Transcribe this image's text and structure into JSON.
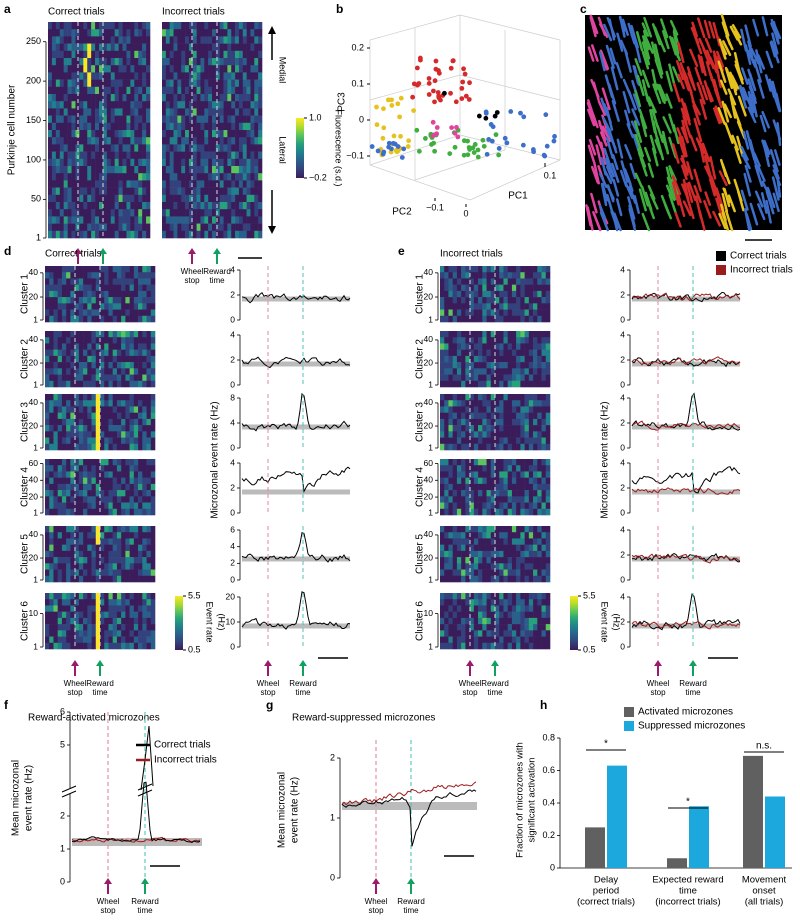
{
  "a": {
    "label": "a",
    "titles": [
      "Correct trials",
      "Incorrect trials"
    ],
    "ylabel": "Purkinje cell number",
    "ylim": [
      1,
      275
    ],
    "yticks": [
      1,
      50,
      100,
      150,
      200,
      250
    ],
    "medial": "Medial",
    "lateral": "Lateral",
    "colorbar": {
      "label": "Fluorescence (s.d.)",
      "ticks": [
        {
          "value": 1.0,
          "label": "1.0"
        },
        {
          "value": -0.2,
          "label": "−0.2"
        }
      ]
    }
  },
  "b": {
    "label": "b",
    "pc1": "PC1",
    "pc2": "PC2",
    "pc3": "PC3",
    "pc3_ticks": [
      0.2,
      0.1,
      0,
      {
        "value": -0.1,
        "label": "−0.1"
      }
    ],
    "pc2_ticks": [
      {
        "value": -0.1,
        "label": "−0.1"
      },
      0
    ],
    "pc1_ticks": [
      0.1
    ]
  },
  "c": {
    "label": "c"
  },
  "markers": {
    "wheel_stop": [
      "Wheel",
      "stop"
    ],
    "reward_time": [
      "Reward",
      "time"
    ]
  },
  "d": {
    "label": "d",
    "title": "Correct trials",
    "trace_ylabel": "Microzonal event rate (Hz)",
    "colorbar": {
      "label": [
        "Event rate",
        "(Hz)"
      ],
      "ticks": [
        5.5,
        0.5
      ]
    },
    "clusters": [
      {
        "name": "Cluster 1",
        "color": "#3d6ec9",
        "ylim": [
          1,
          44
        ],
        "yticks": [
          1,
          20,
          40
        ],
        "trace_ylim": [
          0,
          4
        ],
        "trace_yticks": [
          0,
          2,
          4
        ]
      },
      {
        "name": "Cluster 2",
        "color": "#e6c21e",
        "ylim": [
          1,
          46
        ],
        "yticks": [
          1,
          20,
          40
        ],
        "trace_ylim": [
          0,
          4
        ],
        "trace_yticks": [
          0,
          2,
          4
        ]
      },
      {
        "name": "Cluster 3",
        "color": "#d42a2a",
        "ylim": [
          1,
          46
        ],
        "yticks": [
          1,
          20,
          40
        ],
        "trace_ylim": [
          0,
          8
        ],
        "trace_yticks": [
          0,
          4,
          8
        ]
      },
      {
        "name": "Cluster 4",
        "color": "#3fae3f",
        "ylim": [
          1,
          63
        ],
        "yticks": [
          1,
          20,
          40,
          60
        ],
        "trace_ylim": [
          0,
          4
        ],
        "trace_yticks": [
          0,
          2,
          4
        ]
      },
      {
        "name": "Cluster 5",
        "color": "#3d6ec9",
        "ylim": [
          1,
          46
        ],
        "yticks": [
          1,
          20,
          40
        ],
        "trace_ylim": [
          0,
          6
        ],
        "trace_yticks": [
          0,
          2,
          4,
          6
        ]
      },
      {
        "name": "Cluster 6",
        "color": "#e0449e",
        "ylim": [
          1,
          15
        ],
        "yticks": [
          1,
          10
        ],
        "trace_ylim": [
          0,
          20
        ],
        "trace_yticks": [
          0,
          10,
          20
        ]
      }
    ]
  },
  "e": {
    "label": "e",
    "title": "Incorrect trials",
    "trace_ylabel": "Microzonal event rate (Hz)",
    "legend": [
      {
        "name": "Correct trials",
        "color": "#000000"
      },
      {
        "name": "Incorrect trials",
        "color": "#9b1c1c"
      }
    ],
    "colorbar": {
      "label": [
        "Event rate",
        "(Hz)"
      ],
      "ticks": [
        5.5,
        0.5
      ]
    },
    "clusters": [
      {
        "name": "Cluster 1",
        "color": "#3d6ec9",
        "ylim": [
          1,
          44
        ],
        "yticks": [
          1,
          20,
          40
        ],
        "trace_ylim": [
          0,
          4
        ],
        "trace_yticks": [
          0,
          2,
          4
        ]
      },
      {
        "name": "Cluster 2",
        "color": "#e6c21e",
        "ylim": [
          1,
          46
        ],
        "yticks": [
          1,
          20,
          40
        ],
        "trace_ylim": [
          0,
          4
        ],
        "trace_yticks": [
          0,
          2,
          4
        ]
      },
      {
        "name": "Cluster 3",
        "color": "#d42a2a",
        "ylim": [
          1,
          46
        ],
        "yticks": [
          1,
          20,
          40
        ],
        "trace_ylim": [
          0,
          4
        ],
        "trace_yticks": [
          0,
          2,
          4
        ]
      },
      {
        "name": "Cluster 4",
        "color": "#3fae3f",
        "ylim": [
          1,
          63
        ],
        "yticks": [
          1,
          20,
          40,
          60
        ],
        "trace_ylim": [
          0,
          4
        ],
        "trace_yticks": [
          0,
          2,
          4
        ]
      },
      {
        "name": "Cluster 5",
        "color": "#3d6ec9",
        "ylim": [
          1,
          46
        ],
        "yticks": [
          1,
          20,
          40
        ],
        "trace_ylim": [
          0,
          4
        ],
        "trace_yticks": [
          0,
          2,
          4
        ]
      },
      {
        "name": "Cluster 6",
        "color": "#e0449e",
        "ylim": [
          1,
          15
        ],
        "yticks": [
          1,
          10
        ],
        "trace_ylim": [
          0,
          4
        ],
        "trace_yticks": [
          0,
          2,
          4
        ]
      }
    ]
  },
  "f": {
    "label": "f",
    "title": "Reward-activated microzones",
    "ylabel": [
      "Mean microzonal",
      "event rate (Hz)"
    ],
    "yticks": [
      0,
      1,
      2,
      5,
      6
    ],
    "legend": [
      {
        "name": "Correct trials",
        "color": "#000000"
      },
      {
        "name": "Incorrect trials",
        "color": "#9b1c1c"
      }
    ]
  },
  "g": {
    "label": "g",
    "title": "Reward-suppressed microzones",
    "ylabel": [
      "Mean microzonal",
      "event rate (Hz)"
    ],
    "ylim": [
      0,
      2.2
    ],
    "yticks": [
      0,
      1,
      2
    ]
  },
  "chart_data": {
    "type": "bar",
    "label": "h",
    "ylabel": [
      "Fraction of microzones with",
      "significant activation"
    ],
    "categories": [
      [
        "Delay",
        "period",
        "(correct trials)"
      ],
      [
        "Expected reward",
        "time",
        "(incorrect trials)"
      ],
      [
        "Movement",
        "onset",
        "(all trials)"
      ]
    ],
    "series": [
      {
        "name": "Activated microzones",
        "color": "#606060",
        "values": [
          0.25,
          0.06,
          0.69
        ]
      },
      {
        "name": "Suppressed microzones",
        "color": "#1ca8dd",
        "values": [
          0.63,
          0.38,
          0.44
        ]
      }
    ],
    "annotations": [
      "*",
      "*",
      "n.s."
    ],
    "ylim": [
      0,
      0.8
    ],
    "yticks": [
      0,
      0.2,
      0.4,
      0.6,
      0.8
    ]
  }
}
